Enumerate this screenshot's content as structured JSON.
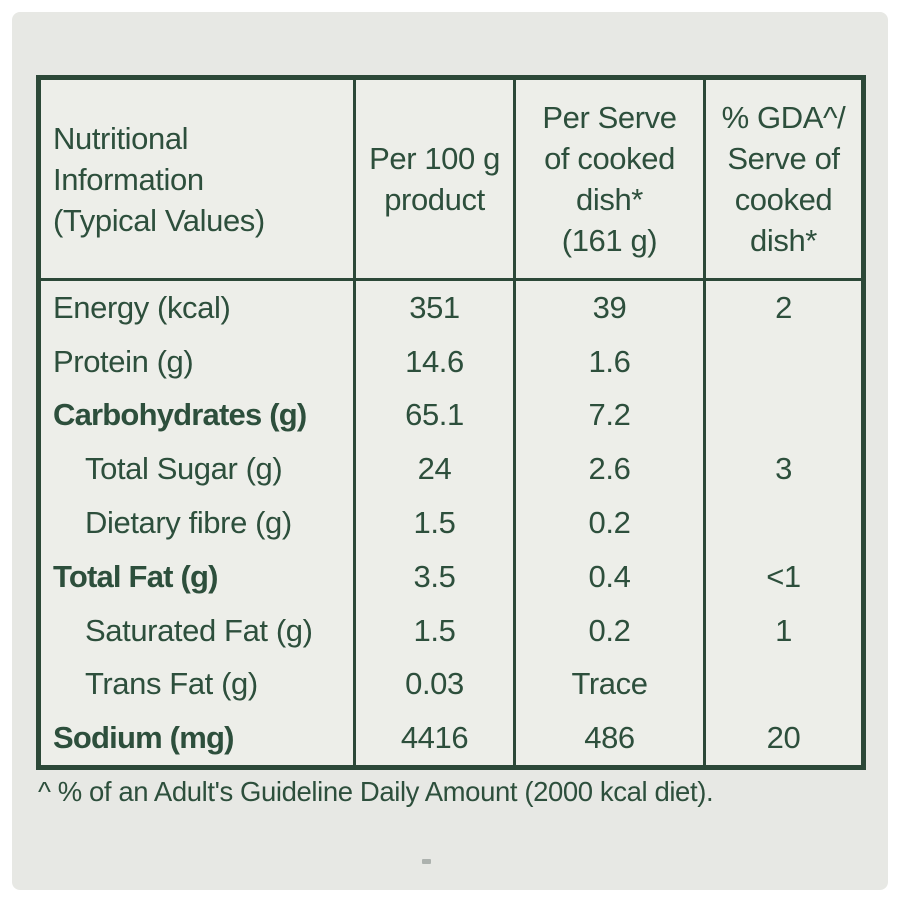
{
  "colors": {
    "text_green": "#2d4f3c",
    "border_green": "#2c4838",
    "card_background": "#e7e8e4",
    "table_background": "#edeee9",
    "page_background": "#ffffff"
  },
  "table": {
    "header": {
      "col1_lines": [
        "Nutritional",
        "Information",
        "(Typical Values)"
      ],
      "col2_lines": [
        "Per 100 g",
        "product"
      ],
      "col3_lines": [
        "Per Serve",
        "of cooked",
        "dish*",
        "(161 g)"
      ],
      "col4_lines": [
        "% GDA^/",
        "Serve of",
        "cooked",
        "dish*"
      ]
    },
    "rows": [
      {
        "label": "Energy (kcal)",
        "bold": false,
        "indent": false,
        "per_100g": "351",
        "per_serve": "39",
        "gda": "2"
      },
      {
        "label": "Protein (g)",
        "bold": false,
        "indent": false,
        "per_100g": "14.6",
        "per_serve": "1.6",
        "gda": ""
      },
      {
        "label": "Carbohydrates (g)",
        "bold": true,
        "indent": false,
        "per_100g": "65.1",
        "per_serve": "7.2",
        "gda": ""
      },
      {
        "label": "Total Sugar (g)",
        "bold": false,
        "indent": true,
        "per_100g": "24",
        "per_serve": "2.6",
        "gda": "3"
      },
      {
        "label": "Dietary fibre (g)",
        "bold": false,
        "indent": true,
        "per_100g": "1.5",
        "per_serve": "0.2",
        "gda": ""
      },
      {
        "label": "Total Fat (g)",
        "bold": true,
        "indent": false,
        "per_100g": "3.5",
        "per_serve": "0.4",
        "gda": "<1"
      },
      {
        "label": "Saturated Fat (g)",
        "bold": false,
        "indent": true,
        "per_100g": "1.5",
        "per_serve": "0.2",
        "gda": "1"
      },
      {
        "label": "Trans Fat (g)",
        "bold": false,
        "indent": true,
        "per_100g": "0.03",
        "per_serve": "Trace",
        "gda": ""
      },
      {
        "label": "Sodium (mg)",
        "bold": true,
        "indent": false,
        "per_100g": "4416",
        "per_serve": "486",
        "gda": "20"
      }
    ]
  },
  "footnote": "^ % of an Adult's Guideline Daily Amount (2000 kcal diet)."
}
